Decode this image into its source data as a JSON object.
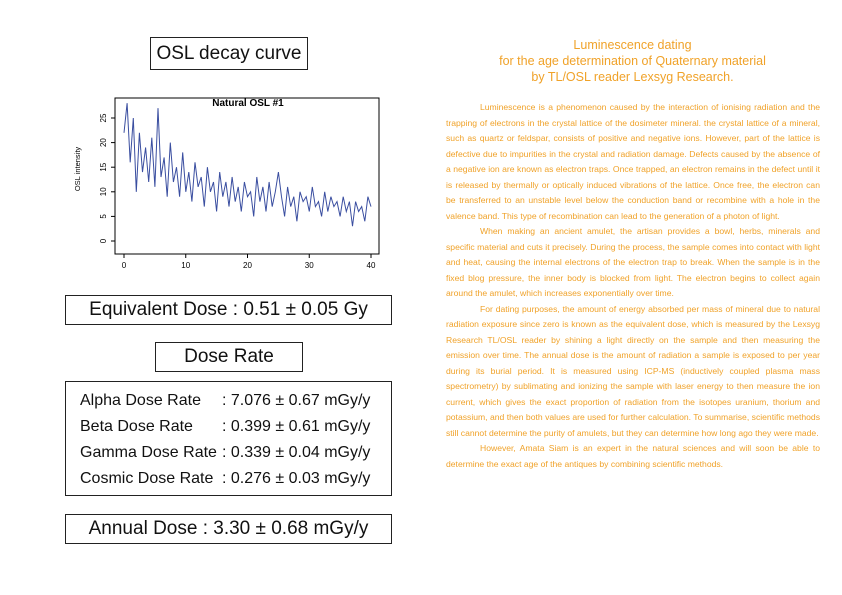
{
  "osl_title": "OSL decay curve",
  "equivalent_dose": "Equivalent Dose : 0.51 ± 0.05 Gy",
  "dose_rate_title": "Dose Rate",
  "dose_rates": [
    {
      "label": "Alpha Dose Rate",
      "value": ": 7.076 ± 0.67 mGy/y"
    },
    {
      "label": "Beta Dose Rate",
      "value": ": 0.399 ± 0.61 mGy/y"
    },
    {
      "label": "Gamma Dose Rate",
      "value": ": 0.339 ± 0.04 mGy/y"
    },
    {
      "label": "Cosmic Dose Rate",
      "value": ": 0.276 ± 0.03 mGy/y"
    }
  ],
  "annual_dose": "Annual Dose : 3.30 ± 0.68 mGy/y",
  "right_title": [
    "Luminescence dating",
    "for the age determination of Quaternary material",
    "by TL/OSL reader Lexsyg Research."
  ],
  "paragraphs": [
    "Luminescence is a phenomenon caused by the interaction of ionising radiation and the trapping of electrons in the crystal lattice of the dosimeter mineral. the crystal lattice of a mineral, such as quartz or feldspar, consists of positive and negative ions. However, part of the lattice is defective due to impurities in the crystal and radiation damage. Defects caused by the absence of a negative ion are known as electron traps. Once trapped, an electron remains in the defect until it is released by thermally or optically induced vibrations of the lattice. Once free, the electron can be transferred to an unstable level below the conduction band or recombine with a hole in the valence band. This type of recombination can lead to the generation of a photon of light.",
    "When making an ancient amulet, the artisan provides a bowl, herbs, minerals and specific material and cuts it precisely. During the process, the sample comes into contact with light and heat, causing the internal electrons of the electron trap to break. When the sample is in the fixed blog pressure, the inner body is blocked from light. The electron begins to collect again around the amulet, which increases exponentially over time.",
    "For dating purposes, the amount of energy absorbed per mass of mineral due to natural radiation exposure since zero is known as the equivalent dose, which is measured by the Lexsyg Research TL/OSL reader by shining a light directly on the sample and then measuring the emission over time. The annual dose is the amount of radiation a sample is exposed to per year during its burial period. It is measured using ICP-MS (inductively coupled plasma mass spectrometry) by sublimating and ionizing the sample with laser energy to then measure the ion current, which gives the exact proportion of radiation from the isotopes uranium, thorium and potassium, and then both values are used for further calculation. To summarise, scientific methods still cannot determine the purity of amulets, but they can determine how long ago they were made.",
    "However, Amata Siam is an expert in the natural sciences and will soon be able to determine the exact age of the antiques by combining scientific methods."
  ],
  "colors": {
    "accent": "#f0a229",
    "curve": "#3a4ea0"
  },
  "chart_data": {
    "type": "line",
    "title": "Natural OSL #1",
    "xlabel": "",
    "ylabel": "OSL intensity",
    "xlim": [
      0,
      40
    ],
    "ylim": [
      0,
      28
    ],
    "xticks": [
      0,
      10,
      20,
      30,
      40
    ],
    "yticks": [
      0,
      5,
      10,
      15,
      20,
      25
    ],
    "series": [
      {
        "x": [
          0,
          0.5,
          1,
          1.5,
          2,
          2.5,
          3,
          3.5,
          4,
          4.5,
          5,
          5.5,
          6,
          6.5,
          7,
          7.5,
          8,
          8.5,
          9,
          9.5,
          10,
          10.5,
          11,
          11.5,
          12,
          12.5,
          13,
          13.5,
          14,
          14.5,
          15,
          15.5,
          16,
          16.5,
          17,
          17.5,
          18,
          18.5,
          19,
          19.5,
          20,
          20.5,
          21,
          21.5,
          22,
          22.5,
          23,
          23.5,
          24,
          24.5,
          25,
          25.5,
          26,
          26.5,
          27,
          27.5,
          28,
          28.5,
          29,
          29.5,
          30,
          30.5,
          31,
          31.5,
          32,
          32.5,
          33,
          33.5,
          34,
          34.5,
          35,
          35.5,
          36,
          36.5,
          37,
          37.5,
          38,
          38.5,
          39,
          39.5,
          40
        ],
        "y": [
          22,
          28,
          16,
          25,
          10,
          22,
          14,
          19,
          12,
          21,
          11,
          27,
          13,
          17,
          9,
          20,
          12,
          15,
          9,
          18,
          10,
          14,
          8,
          16,
          11,
          13,
          7,
          15,
          10,
          12,
          6,
          14,
          9,
          12,
          7,
          13,
          8,
          11,
          6,
          12,
          9,
          10,
          5,
          13,
          8,
          11,
          6,
          12,
          7,
          10,
          14,
          9,
          5,
          11,
          7,
          9,
          4,
          10,
          8,
          9,
          6,
          11,
          7,
          8,
          5,
          10,
          6,
          9,
          7,
          8,
          5,
          9,
          6,
          8,
          3,
          8,
          6,
          7,
          4,
          9,
          7
        ]
      }
    ]
  }
}
